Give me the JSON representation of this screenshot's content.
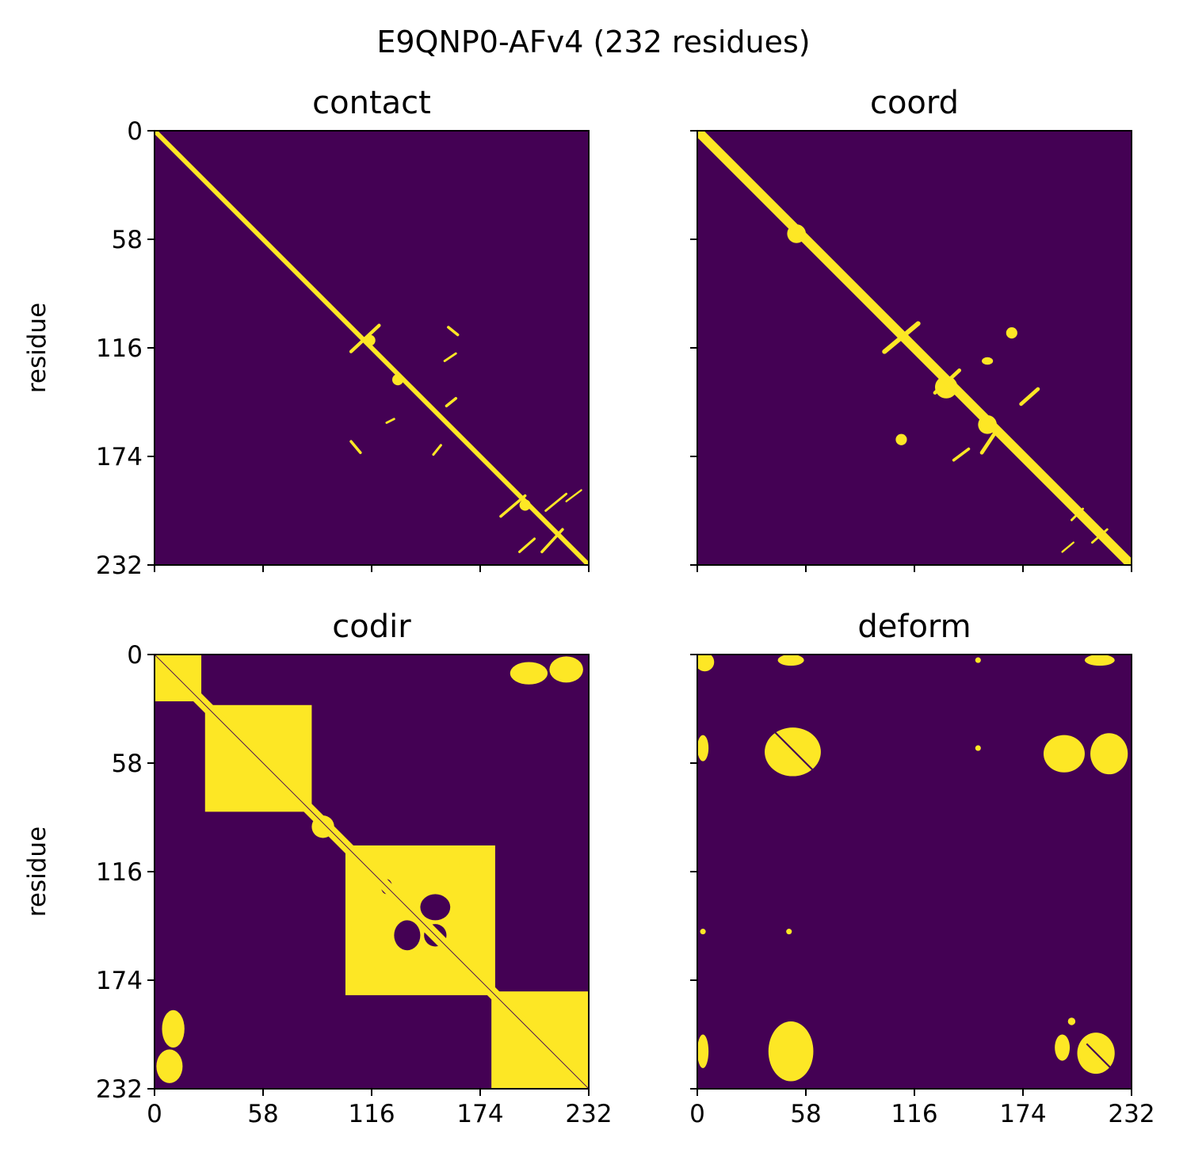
{
  "figure": {
    "suptitle": "E9QNP0-AFv4 (232 residues)"
  },
  "colors": {
    "background": "#440154",
    "contact": "#fde725",
    "axis": "#000000"
  },
  "chart_data": [
    {
      "type": "heatmap",
      "title": "contact",
      "ylabel": "residue",
      "xlabel": "",
      "n": 232,
      "ticks": [
        0,
        58,
        116,
        174,
        232
      ],
      "x_tick_labels_shown": false,
      "y_tick_labels_shown": true,
      "colormap": "viridis (binary)",
      "diag": [
        {
          "a": 0,
          "b": 232,
          "w": 2.5
        }
      ],
      "regions": [
        {
          "cx": 115,
          "cy": 112,
          "rx": 3,
          "ry": 3
        },
        {
          "cx": 130,
          "cy": 133,
          "rx": 3,
          "ry": 3
        },
        {
          "cx": 198,
          "cy": 200,
          "rx": 3,
          "ry": 3
        }
      ],
      "lines": [
        {
          "x1": 105,
          "y1": 118,
          "x2": 120,
          "y2": 104,
          "w": 1.8
        },
        {
          "x1": 185,
          "y1": 206,
          "x2": 198,
          "y2": 195,
          "w": 1.5
        },
        {
          "x1": 207,
          "y1": 225,
          "x2": 218,
          "y2": 213,
          "w": 1.5
        },
        {
          "x1": 209,
          "y1": 203,
          "x2": 220,
          "y2": 194,
          "w": 1.2
        },
        {
          "x1": 157,
          "y1": 105,
          "x2": 162,
          "y2": 109,
          "w": 1.5
        },
        {
          "x1": 156,
          "y1": 147,
          "x2": 161,
          "y2": 143,
          "w": 1.5
        },
        {
          "x1": 149,
          "y1": 173,
          "x2": 153,
          "y2": 168,
          "w": 1.3
        },
        {
          "x1": 105,
          "y1": 166,
          "x2": 110,
          "y2": 172,
          "w": 1.5
        },
        {
          "x1": 124,
          "y1": 156,
          "x2": 128,
          "y2": 154,
          "w": 1.2
        },
        {
          "x1": 155,
          "y1": 123,
          "x2": 161,
          "y2": 119,
          "w": 1.2
        },
        {
          "x1": 195,
          "y1": 225,
          "x2": 203,
          "y2": 218,
          "w": 1.3
        },
        {
          "x1": 220,
          "y1": 198,
          "x2": 228,
          "y2": 192,
          "w": 1.0
        }
      ]
    },
    {
      "type": "heatmap",
      "title": "coord",
      "ylabel": "residue",
      "xlabel": "",
      "n": 232,
      "ticks": [
        0,
        58,
        116,
        174,
        232
      ],
      "x_tick_labels_shown": false,
      "y_tick_labels_shown": false,
      "colormap": "viridis (binary)",
      "diag": [
        {
          "a": 0,
          "b": 232,
          "w": 5
        }
      ],
      "regions": [
        {
          "cx": 53,
          "cy": 55,
          "rx": 5,
          "ry": 5
        },
        {
          "cx": 133,
          "cy": 137,
          "rx": 6,
          "ry": 6
        },
        {
          "cx": 155,
          "cy": 157,
          "rx": 5,
          "ry": 5
        },
        {
          "cx": 109,
          "cy": 165,
          "rx": 3,
          "ry": 3
        },
        {
          "cx": 168,
          "cy": 108,
          "rx": 3,
          "ry": 3
        },
        {
          "cx": 155,
          "cy": 123,
          "rx": 3,
          "ry": 2
        }
      ],
      "lines": [
        {
          "x1": 100,
          "y1": 118,
          "x2": 118,
          "y2": 103,
          "w": 2.5
        },
        {
          "x1": 127,
          "y1": 140,
          "x2": 140,
          "y2": 128,
          "w": 2.0
        },
        {
          "x1": 173,
          "y1": 146,
          "x2": 182,
          "y2": 138,
          "w": 2.0
        },
        {
          "x1": 152,
          "y1": 172,
          "x2": 160,
          "y2": 160,
          "w": 2.0
        },
        {
          "x1": 137,
          "y1": 176,
          "x2": 145,
          "y2": 170,
          "w": 1.5
        },
        {
          "x1": 200,
          "y1": 208,
          "x2": 206,
          "y2": 202,
          "w": 1.2
        },
        {
          "x1": 211,
          "y1": 220,
          "x2": 219,
          "y2": 213,
          "w": 1.2
        },
        {
          "x1": 195,
          "y1": 225,
          "x2": 201,
          "y2": 220,
          "w": 1.0
        }
      ]
    },
    {
      "type": "heatmap",
      "title": "codir",
      "ylabel": "residue",
      "xlabel": "",
      "n": 232,
      "ticks": [
        0,
        58,
        116,
        174,
        232
      ],
      "x_tick_labels_shown": true,
      "y_tick_labels_shown": true,
      "colormap": "viridis (binary)",
      "diag": [
        {
          "a": 0,
          "b": 232,
          "w": 6
        }
      ],
      "blocks": [
        {
          "x0": 0,
          "y0": 0,
          "x1": 25,
          "y1": 25
        },
        {
          "x0": 27,
          "y0": 27,
          "x1": 84,
          "y1": 84
        },
        {
          "x0": 102,
          "y0": 102,
          "x1": 182,
          "y1": 182
        },
        {
          "x0": 180,
          "y0": 180,
          "x1": 232,
          "y1": 232
        }
      ],
      "regions": [
        {
          "cx": 146,
          "cy": 110,
          "rx": 5,
          "ry": 5
        },
        {
          "cx": 169,
          "cy": 111,
          "rx": 6,
          "ry": 7
        },
        {
          "cx": 110,
          "cy": 146,
          "rx": 5,
          "ry": 5
        },
        {
          "cx": 111,
          "cy": 169,
          "rx": 7,
          "ry": 6
        },
        {
          "cx": 200,
          "cy": 10,
          "rx": 10,
          "ry": 6
        },
        {
          "cx": 220,
          "cy": 8,
          "rx": 9,
          "ry": 7
        },
        {
          "cx": 10,
          "cy": 200,
          "rx": 6,
          "ry": 10
        },
        {
          "cx": 8,
          "cy": 220,
          "rx": 7,
          "ry": 9
        },
        {
          "cx": 90,
          "cy": 92,
          "rx": 6,
          "ry": 6
        }
      ],
      "holes": [
        {
          "cx": 135,
          "cy": 150,
          "rx": 7,
          "ry": 8
        },
        {
          "cx": 150,
          "cy": 135,
          "rx": 8,
          "ry": 7
        },
        {
          "cx": 124,
          "cy": 124,
          "rx": 3,
          "ry": 4
        },
        {
          "cx": 150,
          "cy": 150,
          "rx": 6,
          "ry": 6
        }
      ]
    },
    {
      "type": "heatmap",
      "title": "deform",
      "ylabel": "residue",
      "xlabel": "",
      "n": 232,
      "ticks": [
        0,
        58,
        116,
        174,
        232
      ],
      "x_tick_labels_shown": true,
      "y_tick_labels_shown": false,
      "colormap": "viridis (binary)",
      "diag": [
        {
          "a": 40,
          "b": 65,
          "w": 0.9,
          "purple": true
        },
        {
          "a": 208,
          "b": 222,
          "w": 0.9,
          "purple": true
        }
      ],
      "regions": [
        {
          "cx": 51,
          "cy": 52,
          "rx": 15,
          "ry": 13
        },
        {
          "cx": 196,
          "cy": 53,
          "rx": 11,
          "ry": 10
        },
        {
          "cx": 220,
          "cy": 53,
          "rx": 10,
          "ry": 11
        },
        {
          "cx": 50,
          "cy": 212,
          "rx": 12,
          "ry": 16
        },
        {
          "cx": 213,
          "cy": 213,
          "rx": 10,
          "ry": 11
        },
        {
          "cx": 195,
          "cy": 210,
          "rx": 4,
          "ry": 7
        },
        {
          "cx": 4,
          "cy": 4,
          "rx": 5,
          "ry": 5
        },
        {
          "cx": 50,
          "cy": 3,
          "rx": 7,
          "ry": 3
        },
        {
          "cx": 215,
          "cy": 3,
          "rx": 8,
          "ry": 3
        },
        {
          "cx": 3,
          "cy": 50,
          "rx": 3,
          "ry": 7
        },
        {
          "cx": 3,
          "cy": 212,
          "rx": 3,
          "ry": 9
        },
        {
          "cx": 150,
          "cy": 50,
          "rx": 1.5,
          "ry": 1.5
        },
        {
          "cx": 49,
          "cy": 148,
          "rx": 1.5,
          "ry": 1.5
        },
        {
          "cx": 3,
          "cy": 148,
          "rx": 1.5,
          "ry": 1.5
        },
        {
          "cx": 150,
          "cy": 3,
          "rx": 1.5,
          "ry": 1.5
        },
        {
          "cx": 200,
          "cy": 196,
          "rx": 2,
          "ry": 2
        }
      ]
    }
  ]
}
